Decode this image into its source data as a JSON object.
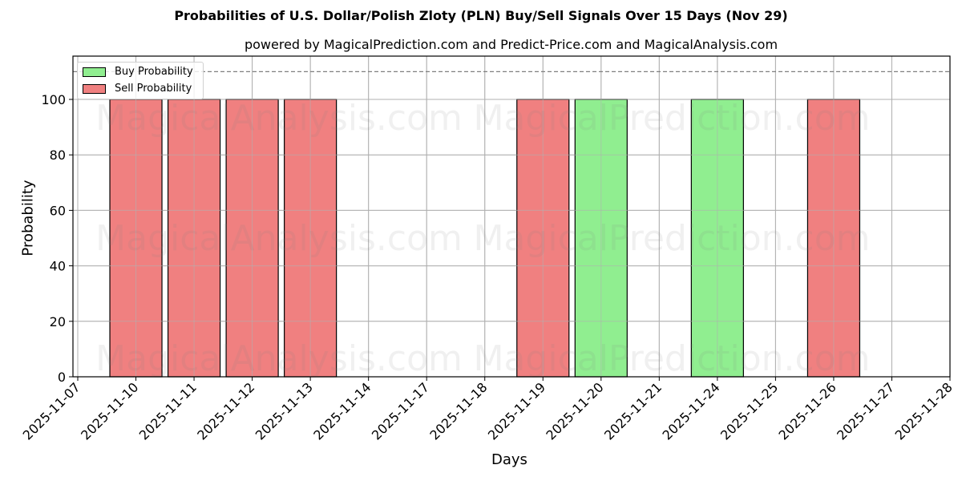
{
  "chart_data": {
    "type": "bar",
    "title": "Probabilities of U.S. Dollar/Polish Zloty (PLN) Buy/Sell Signals Over 15 Days (Nov 29)",
    "subtitle": "powered by MagicalPrediction.com and Predict-Price.com and MagicalAnalysis.com",
    "xlabel": "Days",
    "ylabel": "Probability",
    "ylim": [
      0,
      116
    ],
    "yticks": [
      0,
      20,
      40,
      60,
      80,
      100
    ],
    "xtick_labels": [
      "2025-11-07",
      "2025-11-10",
      "2025-11-11",
      "2025-11-12",
      "2025-11-13",
      "2025-11-14",
      "2025-11-17",
      "2025-11-18",
      "2025-11-19",
      "2025-11-20",
      "2025-11-21",
      "2025-11-24",
      "2025-11-25",
      "2025-11-26",
      "2025-11-27",
      "2025-11-28"
    ],
    "grid": true,
    "legend_position": "upper left",
    "reference_line": {
      "y": 110,
      "style": "dashed",
      "color": "#808080"
    },
    "categories": [
      "2025-11-10",
      "2025-11-11",
      "2025-11-12",
      "2025-11-13",
      "2025-11-19",
      "2025-11-20",
      "2025-11-24",
      "2025-11-26"
    ],
    "series": [
      {
        "name": "Buy Probability",
        "color": "#90ee90",
        "values": [
          0,
          0,
          0,
          0,
          0,
          100,
          100,
          0
        ]
      },
      {
        "name": "Sell Probability",
        "color": "#f08080",
        "values": [
          100,
          100,
          100,
          100,
          100,
          0,
          0,
          100
        ]
      }
    ],
    "watermarks": [
      "MagicalAnalysis.com",
      "MagicalPrediction.com"
    ]
  },
  "legend": {
    "buy_label": "Buy Probability",
    "sell_label": "Sell Probability"
  }
}
